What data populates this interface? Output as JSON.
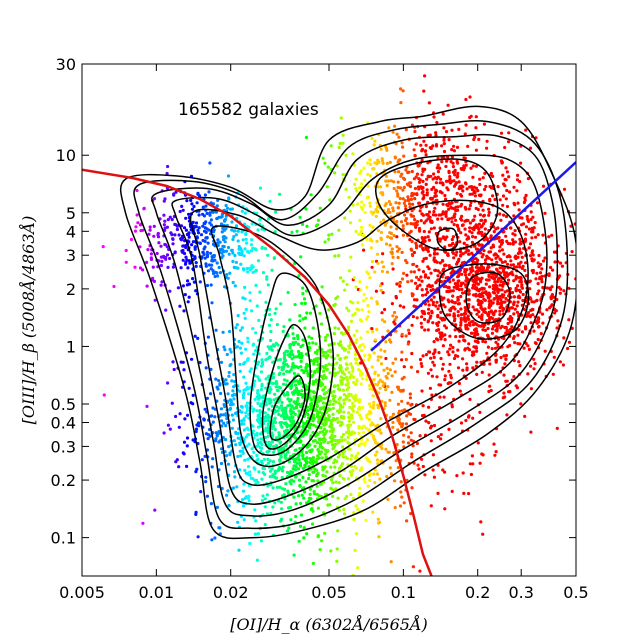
{
  "chart_data": {
    "type": "scatter",
    "title": "",
    "annotation": "165582 galaxies",
    "xlabel": "[OI]/H_α (6302Å/6565Å)",
    "ylabel": "[OIII]/H_β (5008Å/4863Å)",
    "xscale": "log",
    "yscale": "log",
    "xlim": [
      0.005,
      0.5
    ],
    "ylim": [
      0.063,
      30
    ],
    "x_ticks": [
      {
        "value": 0.005,
        "label": "0.005"
      },
      {
        "value": 0.01,
        "label": "0.01"
      },
      {
        "value": 0.02,
        "label": "0.02"
      },
      {
        "value": 0.05,
        "label": "0.05"
      },
      {
        "value": 0.1,
        "label": "0.1"
      },
      {
        "value": 0.2,
        "label": "0.2"
      },
      {
        "value": 0.3,
        "label": "0.3"
      },
      {
        "value": 0.5,
        "label": "0.5"
      }
    ],
    "y_ticks": [
      {
        "value": 0.1,
        "label": "0.1"
      },
      {
        "value": 0.2,
        "label": "0.2"
      },
      {
        "value": 0.3,
        "label": "0.3"
      },
      {
        "value": 0.4,
        "label": "0.4"
      },
      {
        "value": 0.5,
        "label": "0.5"
      },
      {
        "value": 1,
        "label": "1"
      },
      {
        "value": 2,
        "label": "2"
      },
      {
        "value": 3,
        "label": "3"
      },
      {
        "value": 4,
        "label": "4"
      },
      {
        "value": 5,
        "label": "5"
      },
      {
        "value": 10,
        "label": "10"
      },
      {
        "value": 30,
        "label": "30"
      }
    ],
    "grid": false,
    "legend": "none",
    "point_clusters": [
      {
        "name": "",
        "x_center": 0.036,
        "y_center": 0.42,
        "x_spread_dex": 0.19,
        "y_spread_dex": 0.26,
        "color_rule": "hue",
        "count": 1700
      },
      {
        "name": "",
        "x_center": 0.016,
        "y_center": 3.6,
        "x_spread_dex": 0.14,
        "y_spread_dex": 0.14,
        "color_rule": "hue",
        "count": 500
      },
      {
        "name": "",
        "x_center": 0.22,
        "y_center": 1.8,
        "x_spread_dex": 0.17,
        "y_spread_dex": 0.2,
        "color": "#ff0000",
        "count": 1200
      },
      {
        "name": "",
        "x_center": 0.13,
        "y_center": 5.5,
        "x_spread_dex": 0.2,
        "y_spread_dex": 0.22,
        "color_rule": "hue",
        "count": 900
      },
      {
        "name": "",
        "x_center": 0.07,
        "y_center": 0.5,
        "x_spread_dex": 0.25,
        "y_spread_dex": 0.35,
        "color_rule": "hue",
        "count": 600
      }
    ],
    "reference_lines": [
      {
        "name": "",
        "color": "#dd1111",
        "width": 2.5,
        "points": [
          [
            0.005,
            8.4
          ],
          [
            0.008,
            7.6
          ],
          [
            0.011,
            6.9
          ],
          [
            0.015,
            5.9
          ],
          [
            0.02,
            4.8
          ],
          [
            0.03,
            3.2
          ],
          [
            0.04,
            2.3
          ],
          [
            0.05,
            1.65
          ],
          [
            0.06,
            1.15
          ],
          [
            0.07,
            0.78
          ],
          [
            0.08,
            0.52
          ],
          [
            0.09,
            0.34
          ],
          [
            0.1,
            0.21
          ],
          [
            0.11,
            0.13
          ],
          [
            0.12,
            0.082
          ],
          [
            0.13,
            0.063
          ]
        ]
      },
      {
        "name": "",
        "color": "#1a1aee",
        "width": 2.5,
        "points": [
          [
            0.074,
            0.95
          ],
          [
            0.5,
            9.2
          ]
        ]
      }
    ],
    "contours": [
      {
        "name": "",
        "color": "#000000",
        "points": [
          [
            0.0075,
            7.5
          ],
          [
            0.012,
            7.8
          ],
          [
            0.02,
            6.8
          ],
          [
            0.03,
            5.2
          ],
          [
            0.04,
            6.1
          ],
          [
            0.05,
            12
          ],
          [
            0.08,
            15
          ],
          [
            0.12,
            16
          ],
          [
            0.2,
            18
          ],
          [
            0.3,
            15
          ],
          [
            0.4,
            8
          ],
          [
            0.5,
            3.5
          ],
          [
            0.48,
            1.3
          ],
          [
            0.35,
            0.6
          ],
          [
            0.22,
            0.35
          ],
          [
            0.12,
            0.22
          ],
          [
            0.07,
            0.14
          ],
          [
            0.04,
            0.11
          ],
          [
            0.025,
            0.1
          ],
          [
            0.017,
            0.11
          ],
          [
            0.015,
            0.25
          ],
          [
            0.013,
            0.6
          ],
          [
            0.0095,
            2.2
          ],
          [
            0.0075,
            5
          ]
        ]
      },
      {
        "name": "",
        "color": "#000000",
        "points": [
          [
            0.0085,
            7
          ],
          [
            0.014,
            7.3
          ],
          [
            0.022,
            6.2
          ],
          [
            0.032,
            4.6
          ],
          [
            0.045,
            6.3
          ],
          [
            0.06,
            11
          ],
          [
            0.09,
            13.5
          ],
          [
            0.14,
            14.5
          ],
          [
            0.22,
            15
          ],
          [
            0.33,
            12
          ],
          [
            0.42,
            6.8
          ],
          [
            0.46,
            3.2
          ],
          [
            0.44,
            1.4
          ],
          [
            0.33,
            0.66
          ],
          [
            0.2,
            0.4
          ],
          [
            0.11,
            0.25
          ],
          [
            0.065,
            0.16
          ],
          [
            0.038,
            0.12
          ],
          [
            0.024,
            0.112
          ],
          [
            0.018,
            0.125
          ],
          [
            0.016,
            0.27
          ],
          [
            0.014,
            0.66
          ],
          [
            0.0105,
            2.4
          ],
          [
            0.0085,
            5
          ]
        ]
      },
      {
        "name": "",
        "color": "#000000",
        "points": [
          [
            0.01,
            6.3
          ],
          [
            0.016,
            6.7
          ],
          [
            0.024,
            5.6
          ],
          [
            0.034,
            4.3
          ],
          [
            0.05,
            5.5
          ],
          [
            0.065,
            9.5
          ],
          [
            0.1,
            12
          ],
          [
            0.16,
            12.5
          ],
          [
            0.24,
            12.6
          ],
          [
            0.34,
            10
          ],
          [
            0.4,
            5.8
          ],
          [
            0.42,
            2.9
          ],
          [
            0.4,
            1.5
          ],
          [
            0.3,
            0.73
          ],
          [
            0.18,
            0.45
          ],
          [
            0.1,
            0.29
          ],
          [
            0.06,
            0.19
          ],
          [
            0.036,
            0.14
          ],
          [
            0.024,
            0.13
          ],
          [
            0.019,
            0.15
          ],
          [
            0.017,
            0.32
          ],
          [
            0.015,
            0.75
          ],
          [
            0.012,
            2.6
          ],
          [
            0.01,
            5
          ]
        ]
      },
      {
        "name": "",
        "color": "#000000",
        "points": [
          [
            0.012,
            5.8
          ],
          [
            0.018,
            5.9
          ],
          [
            0.026,
            4.8
          ],
          [
            0.036,
            3.8
          ],
          [
            0.055,
            4.8
          ],
          [
            0.075,
            7.5
          ],
          [
            0.11,
            9.5
          ],
          [
            0.18,
            10
          ],
          [
            0.26,
            9.6
          ],
          [
            0.33,
            7.5
          ],
          [
            0.37,
            4.5
          ],
          [
            0.38,
            2.5
          ],
          [
            0.35,
            1.5
          ],
          [
            0.27,
            0.82
          ],
          [
            0.16,
            0.52
          ],
          [
            0.09,
            0.34
          ],
          [
            0.055,
            0.22
          ],
          [
            0.034,
            0.165
          ],
          [
            0.024,
            0.15
          ],
          [
            0.02,
            0.18
          ],
          [
            0.018,
            0.4
          ],
          [
            0.016,
            0.9
          ],
          [
            0.014,
            2.8
          ],
          [
            0.012,
            4.8
          ]
        ]
      },
      {
        "name": "",
        "color": "#000000",
        "points": [
          [
            0.014,
            5
          ],
          [
            0.021,
            4.9
          ],
          [
            0.03,
            3.9
          ],
          [
            0.045,
            3.2
          ],
          [
            0.065,
            3.5
          ],
          [
            0.085,
            4.5
          ],
          [
            0.12,
            5.5
          ],
          [
            0.18,
            5.8
          ],
          [
            0.25,
            5.2
          ],
          [
            0.3,
            3.8
          ],
          [
            0.32,
            2.4
          ],
          [
            0.3,
            1.5
          ],
          [
            0.24,
            0.95
          ],
          [
            0.15,
            0.6
          ],
          [
            0.085,
            0.4
          ],
          [
            0.05,
            0.26
          ],
          [
            0.032,
            0.2
          ],
          [
            0.024,
            0.19
          ],
          [
            0.021,
            0.24
          ],
          [
            0.019,
            0.55
          ],
          [
            0.017,
            1.2
          ],
          [
            0.015,
            3
          ]
        ]
      },
      {
        "name": "",
        "color": "#000000",
        "points": [
          [
            0.017,
            4.2
          ],
          [
            0.025,
            3.9
          ],
          [
            0.034,
            3
          ],
          [
            0.044,
            2.1
          ],
          [
            0.05,
            1.3
          ],
          [
            0.052,
            0.8
          ],
          [
            0.048,
            0.45
          ],
          [
            0.04,
            0.3
          ],
          [
            0.031,
            0.24
          ],
          [
            0.025,
            0.25
          ],
          [
            0.022,
            0.35
          ],
          [
            0.021,
            0.7
          ],
          [
            0.02,
            1.6
          ],
          [
            0.018,
            3
          ]
        ]
      },
      {
        "name": "",
        "color": "#000000",
        "points": [
          [
            0.032,
            2.4
          ],
          [
            0.04,
            2.1
          ],
          [
            0.045,
            1.3
          ],
          [
            0.046,
            0.75
          ],
          [
            0.042,
            0.42
          ],
          [
            0.035,
            0.3
          ],
          [
            0.029,
            0.27
          ],
          [
            0.025,
            0.3
          ],
          [
            0.024,
            0.5
          ],
          [
            0.026,
            1
          ],
          [
            0.029,
            1.8
          ]
        ]
      },
      {
        "name": "",
        "color": "#000000",
        "points": [
          [
            0.036,
            1.3
          ],
          [
            0.04,
            1.1
          ],
          [
            0.042,
            0.7
          ],
          [
            0.039,
            0.42
          ],
          [
            0.033,
            0.31
          ],
          [
            0.028,
            0.3
          ],
          [
            0.027,
            0.45
          ],
          [
            0.03,
            0.8
          ],
          [
            0.033,
            1.1
          ]
        ]
      },
      {
        "name": "",
        "color": "#000000",
        "points": [
          [
            0.038,
            0.7
          ],
          [
            0.04,
            0.55
          ],
          [
            0.037,
            0.4
          ],
          [
            0.032,
            0.33
          ],
          [
            0.029,
            0.34
          ],
          [
            0.03,
            0.48
          ],
          [
            0.034,
            0.62
          ]
        ]
      },
      {
        "name": "",
        "color": "#000000",
        "points": [
          [
            0.08,
            7.5
          ],
          [
            0.11,
            9
          ],
          [
            0.17,
            9.5
          ],
          [
            0.22,
            8
          ],
          [
            0.24,
            5
          ],
          [
            0.2,
            3.5
          ],
          [
            0.14,
            3.2
          ],
          [
            0.1,
            4
          ],
          [
            0.08,
            5.5
          ]
        ]
      },
      {
        "name": "",
        "color": "#000000",
        "points": [
          [
            0.15,
            2.5
          ],
          [
            0.22,
            2.7
          ],
          [
            0.3,
            2.4
          ],
          [
            0.32,
            1.7
          ],
          [
            0.28,
            1.2
          ],
          [
            0.2,
            1.1
          ],
          [
            0.15,
            1.4
          ],
          [
            0.14,
            2
          ]
        ]
      },
      {
        "name": "",
        "color": "#000000",
        "points": [
          [
            0.19,
            2.3
          ],
          [
            0.24,
            2.4
          ],
          [
            0.27,
            1.9
          ],
          [
            0.25,
            1.4
          ],
          [
            0.2,
            1.35
          ],
          [
            0.18,
            1.7
          ]
        ]
      },
      {
        "name": "",
        "color": "#000000",
        "points": [
          [
            0.14,
            4
          ],
          [
            0.16,
            4.1
          ],
          [
            0.165,
            3.4
          ],
          [
            0.15,
            3.2
          ],
          [
            0.138,
            3.5
          ]
        ]
      }
    ]
  }
}
